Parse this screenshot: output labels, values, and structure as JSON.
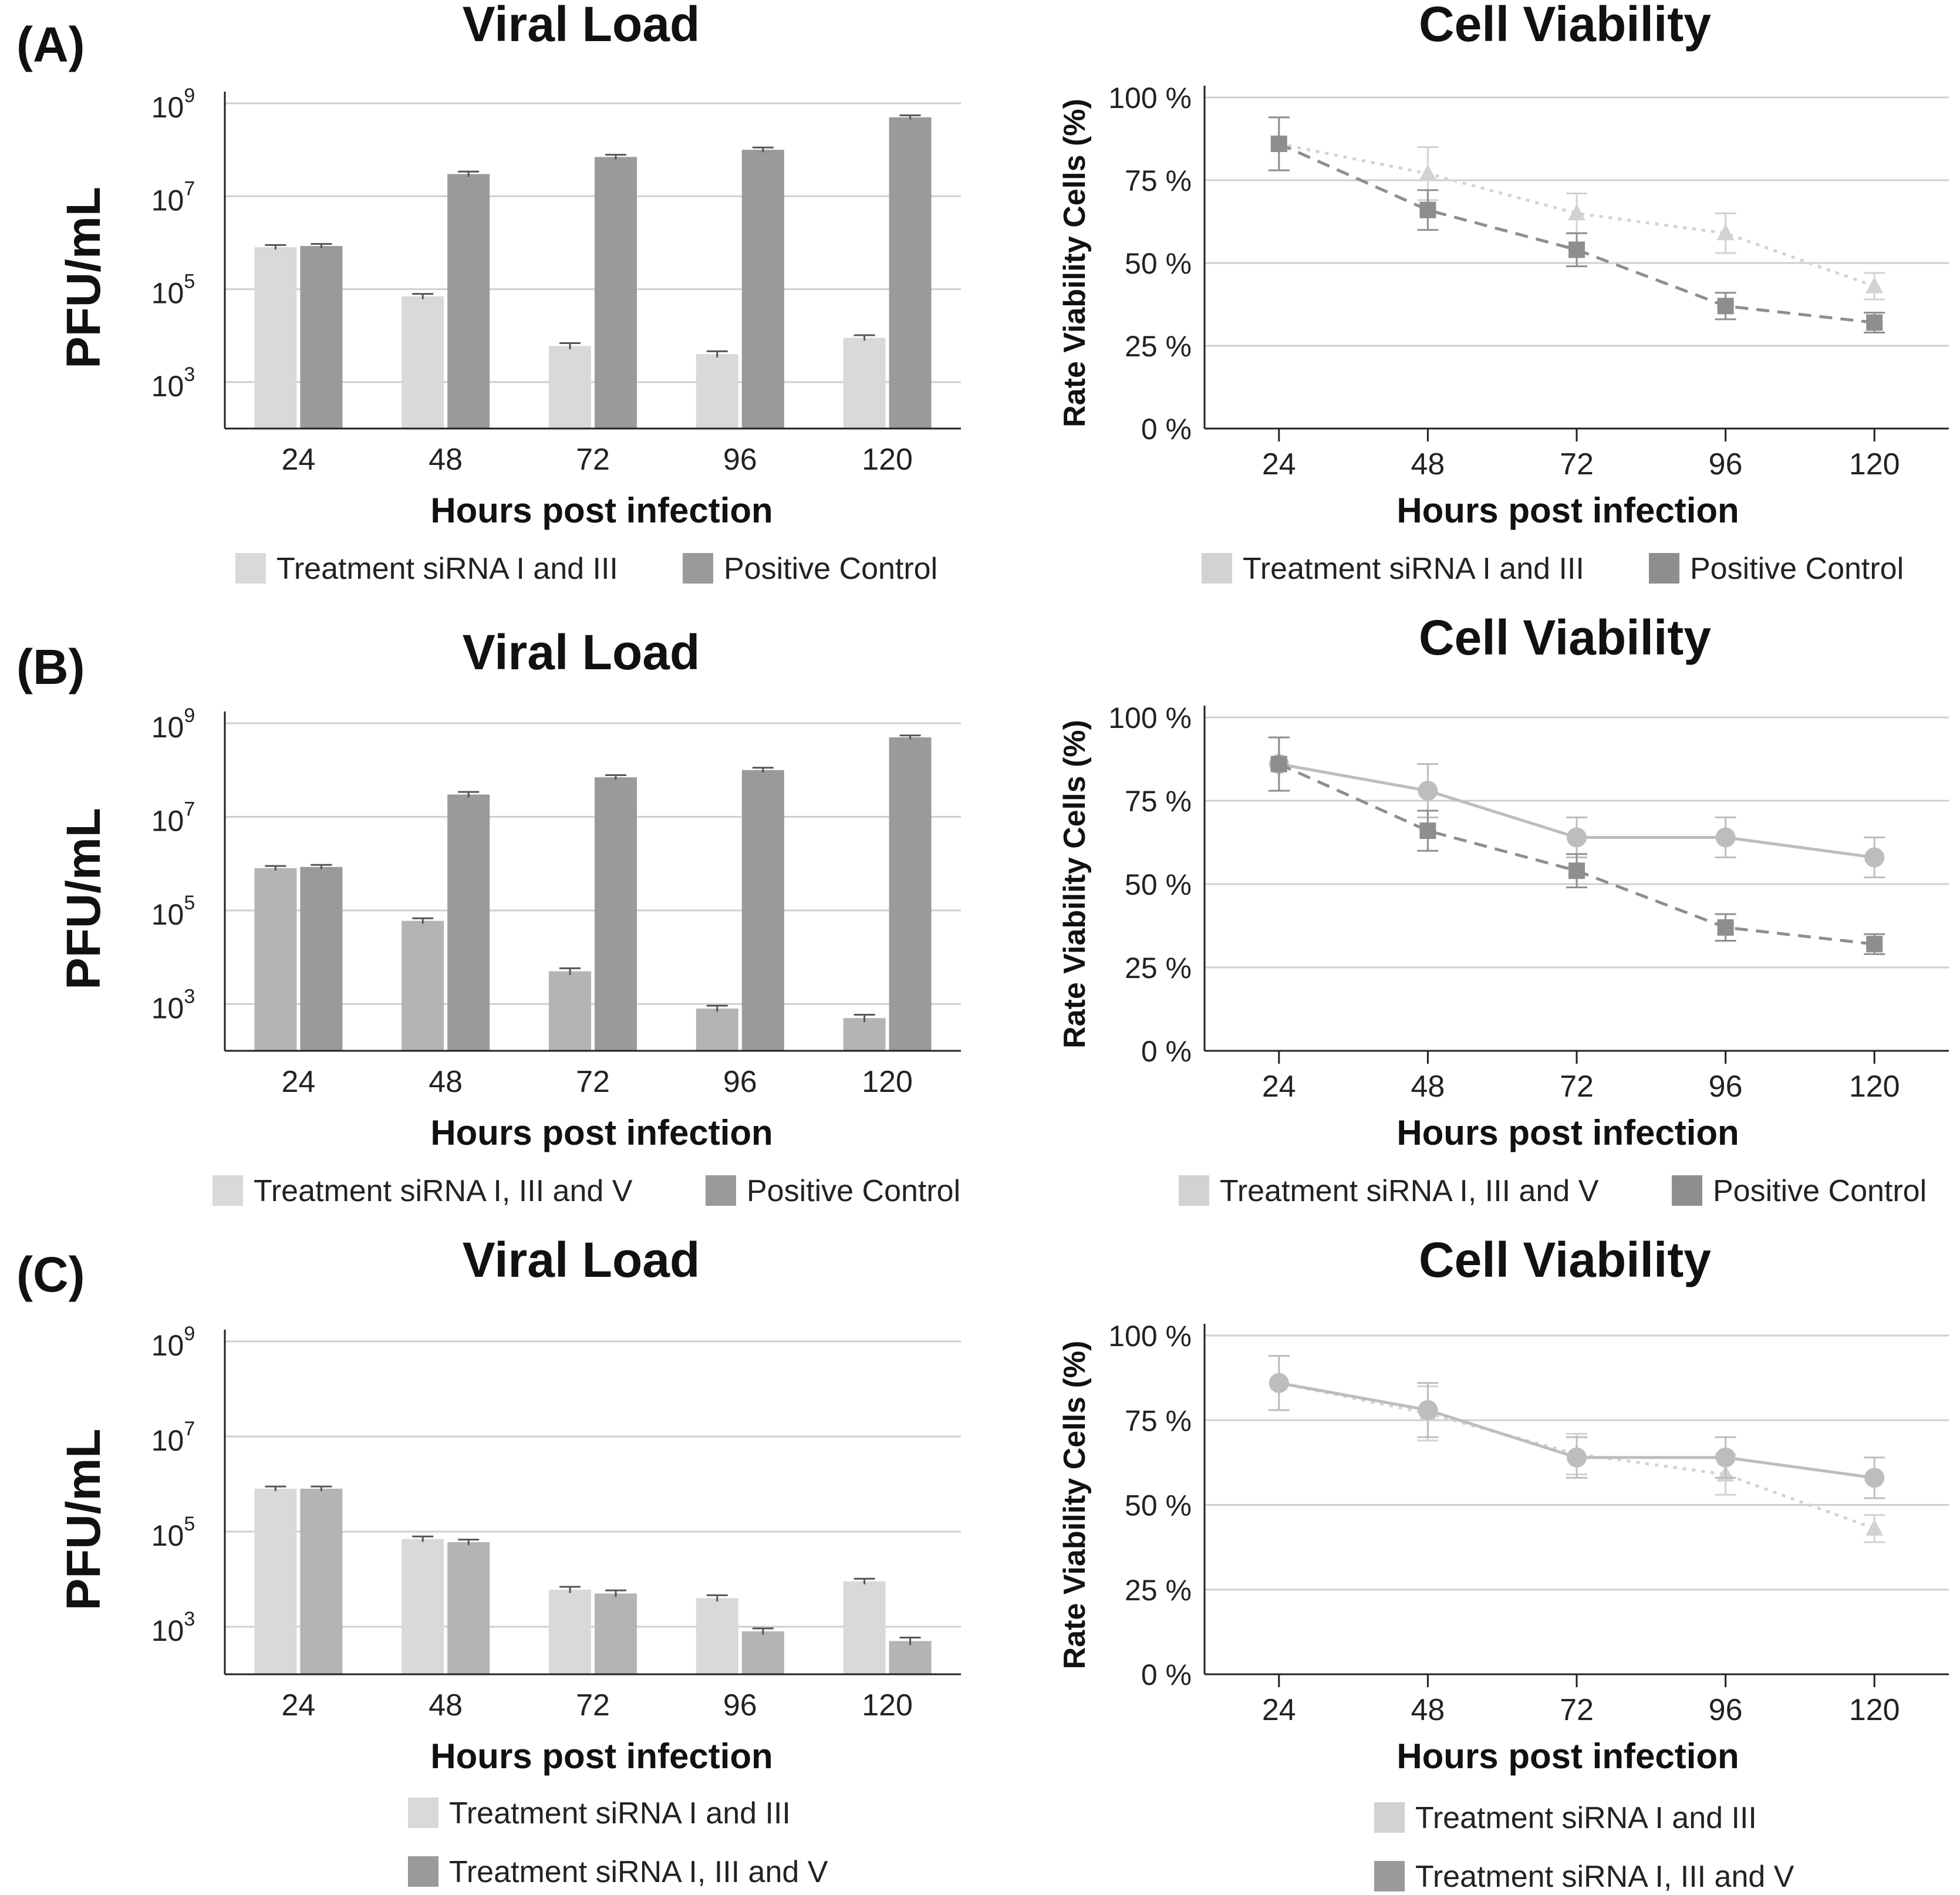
{
  "panels": [
    {
      "label": "(A)"
    },
    {
      "label": "(B)"
    },
    {
      "label": "(C)"
    }
  ],
  "colors": {
    "light_bar": "#d9d9d9",
    "mid_bar": "#b4b4b4",
    "dark_bar": "#9a9a9a",
    "light_line": "#d2d2d2",
    "mid_line": "#bdbdbd",
    "dark_line": "#8e8e8e",
    "grid": "#cfcfcf",
    "axis": "#222222",
    "error": "#555555"
  },
  "chart_data": [
    {
      "id": "A-viral",
      "type": "bar",
      "title": "Viral Load",
      "xlabel": "Hours post infection",
      "ylabel": "PFU/mL",
      "yscale": "log10",
      "ylim": [
        100,
        1000000000
      ],
      "ytick_values": [
        1000,
        100000,
        10000000,
        1000000000
      ],
      "ytick_labels": [
        {
          "base": "10",
          "exp": "3"
        },
        {
          "base": "10",
          "exp": "5"
        },
        {
          "base": "10",
          "exp": "7"
        },
        {
          "base": "10",
          "exp": "9"
        }
      ],
      "categories": [
        "24",
        "48",
        "72",
        "96",
        "120"
      ],
      "series": [
        {
          "name": "Treatment siRNA I and III",
          "color": "light_bar",
          "values": [
            800000,
            70000,
            6000,
            4000,
            9000
          ],
          "errors": [
            90000,
            9000,
            900,
            600,
            1200
          ]
        },
        {
          "name": "Positive Control",
          "color": "dark_bar",
          "values": [
            850000,
            30000000,
            70000000,
            100000000,
            500000000
          ],
          "errors": [
            90000,
            4000000,
            8000000,
            12000000,
            50000000
          ]
        }
      ],
      "legend_layout": "row"
    },
    {
      "id": "A-viability",
      "type": "line",
      "title": "Cell Viability",
      "xlabel": "Hours post infection",
      "ylabel": "Rate Viability Cells (%)",
      "ylim": [
        0,
        100
      ],
      "ytick_values": [
        0,
        25,
        50,
        75,
        100
      ],
      "ytick_labels": [
        "0 %",
        "25 %",
        "50 %",
        "75 %",
        "100 %"
      ],
      "x": [
        "24",
        "48",
        "72",
        "96",
        "120"
      ],
      "series": [
        {
          "name": "Treatment siRNA I and III",
          "color": "light_line",
          "dash": "dotted",
          "marker": "triangle",
          "values": [
            86,
            77,
            65,
            59,
            43
          ],
          "errors": [
            8,
            8,
            6,
            6,
            4
          ]
        },
        {
          "name": "Positive Control",
          "color": "dark_line",
          "dash": "dashed",
          "marker": "square",
          "values": [
            86,
            66,
            54,
            37,
            32
          ],
          "errors": [
            8,
            6,
            5,
            4,
            3
          ]
        }
      ],
      "legend_layout": "row"
    },
    {
      "id": "B-viral",
      "type": "bar",
      "title": "Viral Load",
      "xlabel": "Hours post infection",
      "ylabel": "PFU/mL",
      "yscale": "log10",
      "ylim": [
        100,
        1000000000
      ],
      "ytick_values": [
        1000,
        100000,
        10000000,
        1000000000
      ],
      "ytick_labels": [
        {
          "base": "10",
          "exp": "3"
        },
        {
          "base": "10",
          "exp": "5"
        },
        {
          "base": "10",
          "exp": "7"
        },
        {
          "base": "10",
          "exp": "9"
        }
      ],
      "categories": [
        "24",
        "48",
        "72",
        "96",
        "120"
      ],
      "series": [
        {
          "name": "Treatment siRNA I, III and V",
          "color": "mid_bar",
          "legend_color": "light_bar",
          "values": [
            800000,
            60000,
            5000,
            800,
            500
          ],
          "errors": [
            90000,
            8000,
            800,
            120,
            90
          ]
        },
        {
          "name": "Positive Control",
          "color": "dark_bar",
          "values": [
            850000,
            30000000,
            70000000,
            100000000,
            500000000
          ],
          "errors": [
            90000,
            4000000,
            8000000,
            12000000,
            50000000
          ]
        }
      ],
      "legend_layout": "row"
    },
    {
      "id": "B-viability",
      "type": "line",
      "title": "Cell Viability",
      "xlabel": "Hours post infection",
      "ylabel": "Rate Viability Cells (%)",
      "ylim": [
        0,
        100
      ],
      "ytick_values": [
        0,
        25,
        50,
        75,
        100
      ],
      "ytick_labels": [
        "0 %",
        "25 %",
        "50 %",
        "75 %",
        "100 %"
      ],
      "x": [
        "24",
        "48",
        "72",
        "96",
        "120"
      ],
      "series": [
        {
          "name": "Treatment siRNA I, III and V",
          "color": "mid_line",
          "legend_color": "light_line",
          "dash": "solid",
          "marker": "circle",
          "values": [
            86,
            78,
            64,
            64,
            58
          ],
          "errors": [
            8,
            8,
            6,
            6,
            6
          ]
        },
        {
          "name": "Positive Control",
          "color": "dark_line",
          "dash": "dashed",
          "marker": "square",
          "values": [
            86,
            66,
            54,
            37,
            32
          ],
          "errors": [
            8,
            6,
            5,
            4,
            3
          ]
        }
      ],
      "legend_layout": "row"
    },
    {
      "id": "C-viral",
      "type": "bar",
      "title": "Viral Load",
      "xlabel": "Hours post infection",
      "ylabel": "PFU/mL",
      "yscale": "log10",
      "ylim": [
        100,
        1000000000
      ],
      "ytick_values": [
        1000,
        100000,
        10000000,
        1000000000
      ],
      "ytick_labels": [
        {
          "base": "10",
          "exp": "3"
        },
        {
          "base": "10",
          "exp": "5"
        },
        {
          "base": "10",
          "exp": "7"
        },
        {
          "base": "10",
          "exp": "9"
        }
      ],
      "categories": [
        "24",
        "48",
        "72",
        "96",
        "120"
      ],
      "series": [
        {
          "name": "Treatment siRNA I and III",
          "color": "light_bar",
          "values": [
            800000,
            70000,
            6000,
            4000,
            9000
          ],
          "errors": [
            90000,
            9000,
            900,
            600,
            1200
          ]
        },
        {
          "name": "Treatment siRNA I, III and V",
          "color": "mid_bar",
          "legend_color": "dark_bar",
          "values": [
            800000,
            60000,
            5000,
            800,
            500
          ],
          "errors": [
            90000,
            8000,
            800,
            120,
            90
          ]
        }
      ],
      "legend_layout": "column"
    },
    {
      "id": "C-viability",
      "type": "line",
      "title": "Cell Viability",
      "xlabel": "Hours post infection",
      "ylabel": "Rate Viability Cells (%)",
      "ylim": [
        0,
        100
      ],
      "ytick_values": [
        0,
        25,
        50,
        75,
        100
      ],
      "ytick_labels": [
        "0 %",
        "25 %",
        "50 %",
        "75 %",
        "100 %"
      ],
      "x": [
        "24",
        "48",
        "72",
        "96",
        "120"
      ],
      "series": [
        {
          "name": "Treatment siRNA I and III",
          "color": "light_line",
          "dash": "dotted",
          "marker": "triangle",
          "values": [
            86,
            77,
            65,
            59,
            43
          ],
          "errors": [
            8,
            8,
            6,
            6,
            4
          ]
        },
        {
          "name": "Treatment siRNA I, III and V",
          "color": "mid_line",
          "legend_color": "dark_bar",
          "dash": "solid",
          "marker": "circle",
          "values": [
            86,
            78,
            64,
            64,
            58
          ],
          "errors": [
            8,
            8,
            6,
            6,
            6
          ]
        }
      ],
      "legend_layout": "column"
    }
  ]
}
